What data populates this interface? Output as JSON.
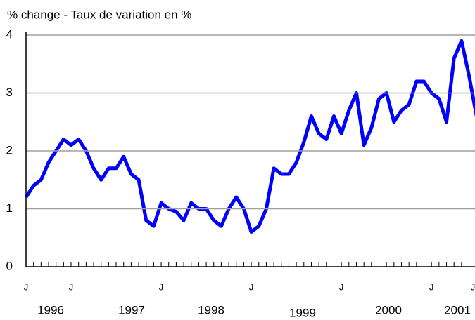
{
  "chart_data": {
    "type": "line",
    "title": "% change - Taux de variation en %",
    "categories": [
      "J",
      null,
      null,
      null,
      null,
      null,
      "J",
      null,
      null,
      null,
      null,
      null,
      null,
      null,
      null,
      null,
      null,
      null,
      "J",
      null,
      null,
      null,
      null,
      null,
      null,
      null,
      null,
      null,
      null,
      null,
      "J",
      null,
      null,
      null,
      null,
      null,
      null,
      null,
      null,
      null,
      null,
      null,
      "J",
      null,
      null,
      null,
      null,
      null,
      null,
      null,
      null,
      null,
      null,
      null,
      "J",
      null,
      null,
      null,
      null,
      null,
      "J"
    ],
    "year_labels": [
      "1996",
      "1997",
      "1998",
      "1999",
      "2000",
      "2001"
    ],
    "series": [
      {
        "color": "#0000ff",
        "values": [
          1.2,
          1.4,
          1.5,
          1.8,
          2.0,
          2.2,
          2.1,
          2.2,
          2.0,
          1.7,
          1.5,
          1.7,
          1.7,
          1.9,
          1.6,
          1.5,
          0.8,
          0.7,
          1.1,
          1.0,
          0.95,
          0.8,
          1.1,
          1.0,
          1.0,
          0.8,
          0.7,
          1.0,
          1.2,
          1.0,
          0.6,
          0.7,
          1.0,
          1.7,
          1.6,
          1.6,
          1.8,
          2.15,
          2.6,
          2.3,
          2.2,
          2.6,
          2.3,
          2.7,
          3.0,
          2.1,
          2.4,
          2.9,
          3.0,
          2.5,
          2.7,
          2.8,
          3.2,
          3.2,
          3.0,
          2.9,
          2.5,
          3.6,
          3.9,
          3.3,
          2.6
        ]
      }
    ],
    "ylim": [
      0,
      4
    ],
    "yticks": [
      0,
      1,
      2,
      3,
      4
    ],
    "grid": true
  }
}
